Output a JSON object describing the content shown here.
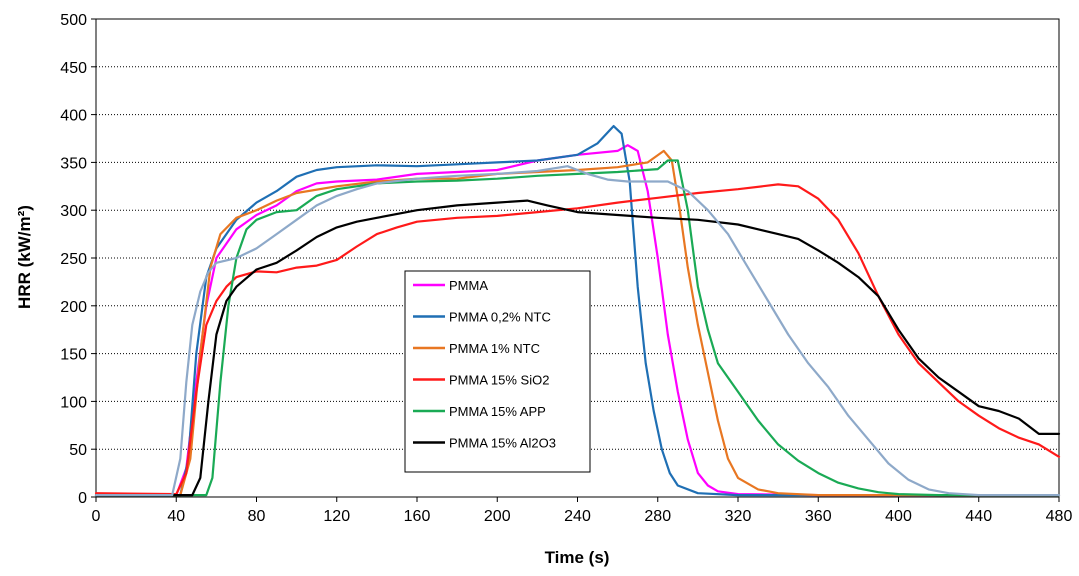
{
  "chart_data": {
    "type": "line",
    "title": "",
    "xlabel": "Time (s)",
    "ylabel": "HRR (kW/m²)",
    "xlim": [
      0,
      480
    ],
    "ylim": [
      0,
      500
    ],
    "x_ticks": [
      0,
      40,
      80,
      120,
      160,
      200,
      240,
      280,
      320,
      360,
      400,
      440,
      480
    ],
    "y_ticks": [
      0,
      50,
      100,
      150,
      200,
      250,
      300,
      350,
      400,
      450,
      500
    ],
    "grid": "horizontal dotted",
    "legend_position": "center-left inside plot",
    "series": [
      {
        "name": "PMMA",
        "color": "#ff00ff",
        "points": [
          [
            0,
            2
          ],
          [
            40,
            2
          ],
          [
            45,
            30
          ],
          [
            50,
            120
          ],
          [
            55,
            200
          ],
          [
            60,
            250
          ],
          [
            70,
            280
          ],
          [
            80,
            295
          ],
          [
            90,
            305
          ],
          [
            100,
            320
          ],
          [
            110,
            328
          ],
          [
            120,
            330
          ],
          [
            140,
            332
          ],
          [
            160,
            338
          ],
          [
            180,
            340
          ],
          [
            200,
            342
          ],
          [
            220,
            352
          ],
          [
            240,
            358
          ],
          [
            260,
            362
          ],
          [
            265,
            368
          ],
          [
            270,
            362
          ],
          [
            275,
            320
          ],
          [
            280,
            250
          ],
          [
            285,
            170
          ],
          [
            290,
            110
          ],
          [
            295,
            60
          ],
          [
            300,
            25
          ],
          [
            305,
            12
          ],
          [
            310,
            6
          ],
          [
            320,
            3
          ],
          [
            360,
            2
          ],
          [
            480,
            2
          ]
        ]
      },
      {
        "name": "PMMA 0,2% NTC",
        "color": "#1f6fb4",
        "points": [
          [
            0,
            2
          ],
          [
            42,
            2
          ],
          [
            46,
            40
          ],
          [
            50,
            150
          ],
          [
            55,
            230
          ],
          [
            60,
            260
          ],
          [
            70,
            290
          ],
          [
            80,
            308
          ],
          [
            90,
            320
          ],
          [
            100,
            335
          ],
          [
            110,
            342
          ],
          [
            120,
            345
          ],
          [
            140,
            347
          ],
          [
            160,
            346
          ],
          [
            180,
            348
          ],
          [
            200,
            350
          ],
          [
            220,
            352
          ],
          [
            240,
            358
          ],
          [
            250,
            370
          ],
          [
            258,
            388
          ],
          [
            262,
            380
          ],
          [
            266,
            330
          ],
          [
            270,
            220
          ],
          [
            274,
            140
          ],
          [
            278,
            90
          ],
          [
            282,
            50
          ],
          [
            286,
            25
          ],
          [
            290,
            12
          ],
          [
            300,
            4
          ],
          [
            320,
            2
          ],
          [
            480,
            2
          ]
        ]
      },
      {
        "name": "PMMA 1% NTC",
        "color": "#e87722",
        "points": [
          [
            0,
            2
          ],
          [
            42,
            2
          ],
          [
            47,
            40
          ],
          [
            52,
            150
          ],
          [
            57,
            240
          ],
          [
            62,
            275
          ],
          [
            70,
            292
          ],
          [
            80,
            300
          ],
          [
            90,
            310
          ],
          [
            100,
            318
          ],
          [
            120,
            325
          ],
          [
            140,
            330
          ],
          [
            160,
            333
          ],
          [
            180,
            333
          ],
          [
            200,
            338
          ],
          [
            220,
            340
          ],
          [
            240,
            342
          ],
          [
            260,
            345
          ],
          [
            275,
            350
          ],
          [
            283,
            362
          ],
          [
            287,
            352
          ],
          [
            291,
            300
          ],
          [
            295,
            240
          ],
          [
            300,
            180
          ],
          [
            305,
            130
          ],
          [
            310,
            80
          ],
          [
            315,
            40
          ],
          [
            320,
            20
          ],
          [
            330,
            8
          ],
          [
            340,
            4
          ],
          [
            360,
            2
          ],
          [
            480,
            2
          ]
        ]
      },
      {
        "name": "PMMA 15% SiO2",
        "color": "#ff1a1a",
        "points": [
          [
            0,
            4
          ],
          [
            40,
            3
          ],
          [
            45,
            25
          ],
          [
            50,
            110
          ],
          [
            55,
            180
          ],
          [
            60,
            205
          ],
          [
            65,
            220
          ],
          [
            70,
            230
          ],
          [
            80,
            236
          ],
          [
            90,
            235
          ],
          [
            100,
            240
          ],
          [
            110,
            242
          ],
          [
            120,
            248
          ],
          [
            130,
            262
          ],
          [
            140,
            275
          ],
          [
            150,
            282
          ],
          [
            160,
            288
          ],
          [
            180,
            292
          ],
          [
            200,
            294
          ],
          [
            220,
            298
          ],
          [
            240,
            302
          ],
          [
            260,
            308
          ],
          [
            280,
            313
          ],
          [
            300,
            318
          ],
          [
            320,
            322
          ],
          [
            340,
            327
          ],
          [
            350,
            325
          ],
          [
            360,
            312
          ],
          [
            370,
            290
          ],
          [
            380,
            255
          ],
          [
            390,
            210
          ],
          [
            400,
            170
          ],
          [
            410,
            140
          ],
          [
            420,
            120
          ],
          [
            430,
            100
          ],
          [
            440,
            85
          ],
          [
            450,
            72
          ],
          [
            460,
            62
          ],
          [
            470,
            55
          ],
          [
            480,
            42
          ]
        ]
      },
      {
        "name": "PMMA 15% APP",
        "color": "#1aaa55",
        "points": [
          [
            0,
            2
          ],
          [
            55,
            2
          ],
          [
            58,
            20
          ],
          [
            62,
            120
          ],
          [
            66,
            200
          ],
          [
            70,
            250
          ],
          [
            75,
            280
          ],
          [
            80,
            290
          ],
          [
            90,
            298
          ],
          [
            100,
            300
          ],
          [
            110,
            315
          ],
          [
            120,
            322
          ],
          [
            140,
            328
          ],
          [
            160,
            330
          ],
          [
            180,
            331
          ],
          [
            200,
            333
          ],
          [
            220,
            336
          ],
          [
            240,
            338
          ],
          [
            260,
            340
          ],
          [
            280,
            343
          ],
          [
            285,
            352
          ],
          [
            290,
            352
          ],
          [
            295,
            300
          ],
          [
            300,
            220
          ],
          [
            305,
            175
          ],
          [
            310,
            140
          ],
          [
            320,
            110
          ],
          [
            330,
            80
          ],
          [
            340,
            55
          ],
          [
            350,
            38
          ],
          [
            360,
            25
          ],
          [
            370,
            15
          ],
          [
            380,
            9
          ],
          [
            390,
            5
          ],
          [
            400,
            3
          ],
          [
            420,
            2
          ],
          [
            480,
            2
          ]
        ]
      },
      {
        "name": "PMMA 15% Al2O3",
        "color": "#000000",
        "points": [
          [
            0,
            2
          ],
          [
            48,
            2
          ],
          [
            52,
            20
          ],
          [
            56,
            100
          ],
          [
            60,
            170
          ],
          [
            65,
            205
          ],
          [
            70,
            220
          ],
          [
            80,
            238
          ],
          [
            90,
            245
          ],
          [
            100,
            258
          ],
          [
            110,
            272
          ],
          [
            120,
            282
          ],
          [
            130,
            288
          ],
          [
            140,
            292
          ],
          [
            160,
            300
          ],
          [
            180,
            305
          ],
          [
            200,
            308
          ],
          [
            215,
            310
          ],
          [
            225,
            305
          ],
          [
            240,
            298
          ],
          [
            260,
            295
          ],
          [
            280,
            292
          ],
          [
            300,
            290
          ],
          [
            320,
            285
          ],
          [
            330,
            280
          ],
          [
            340,
            275
          ],
          [
            350,
            270
          ],
          [
            360,
            258
          ],
          [
            370,
            245
          ],
          [
            380,
            230
          ],
          [
            390,
            210
          ],
          [
            400,
            175
          ],
          [
            410,
            145
          ],
          [
            420,
            125
          ],
          [
            430,
            110
          ],
          [
            440,
            95
          ],
          [
            450,
            90
          ],
          [
            460,
            82
          ],
          [
            470,
            66
          ],
          [
            480,
            66
          ]
        ]
      },
      {
        "name": "",
        "color": "#8ea9c9",
        "points": [
          [
            0,
            2
          ],
          [
            38,
            2
          ],
          [
            42,
            40
          ],
          [
            45,
            120
          ],
          [
            48,
            180
          ],
          [
            52,
            215
          ],
          [
            56,
            235
          ],
          [
            60,
            245
          ],
          [
            70,
            250
          ],
          [
            80,
            260
          ],
          [
            90,
            275
          ],
          [
            100,
            290
          ],
          [
            110,
            305
          ],
          [
            120,
            315
          ],
          [
            130,
            322
          ],
          [
            140,
            328
          ],
          [
            160,
            333
          ],
          [
            180,
            336
          ],
          [
            200,
            338
          ],
          [
            220,
            341
          ],
          [
            235,
            346
          ],
          [
            245,
            338
          ],
          [
            255,
            332
          ],
          [
            265,
            330
          ],
          [
            275,
            330
          ],
          [
            285,
            330
          ],
          [
            295,
            320
          ],
          [
            305,
            300
          ],
          [
            315,
            275
          ],
          [
            325,
            240
          ],
          [
            335,
            205
          ],
          [
            345,
            170
          ],
          [
            355,
            140
          ],
          [
            365,
            115
          ],
          [
            375,
            85
          ],
          [
            385,
            60
          ],
          [
            395,
            35
          ],
          [
            405,
            18
          ],
          [
            415,
            8
          ],
          [
            425,
            4
          ],
          [
            440,
            2
          ],
          [
            480,
            2
          ]
        ]
      }
    ]
  }
}
